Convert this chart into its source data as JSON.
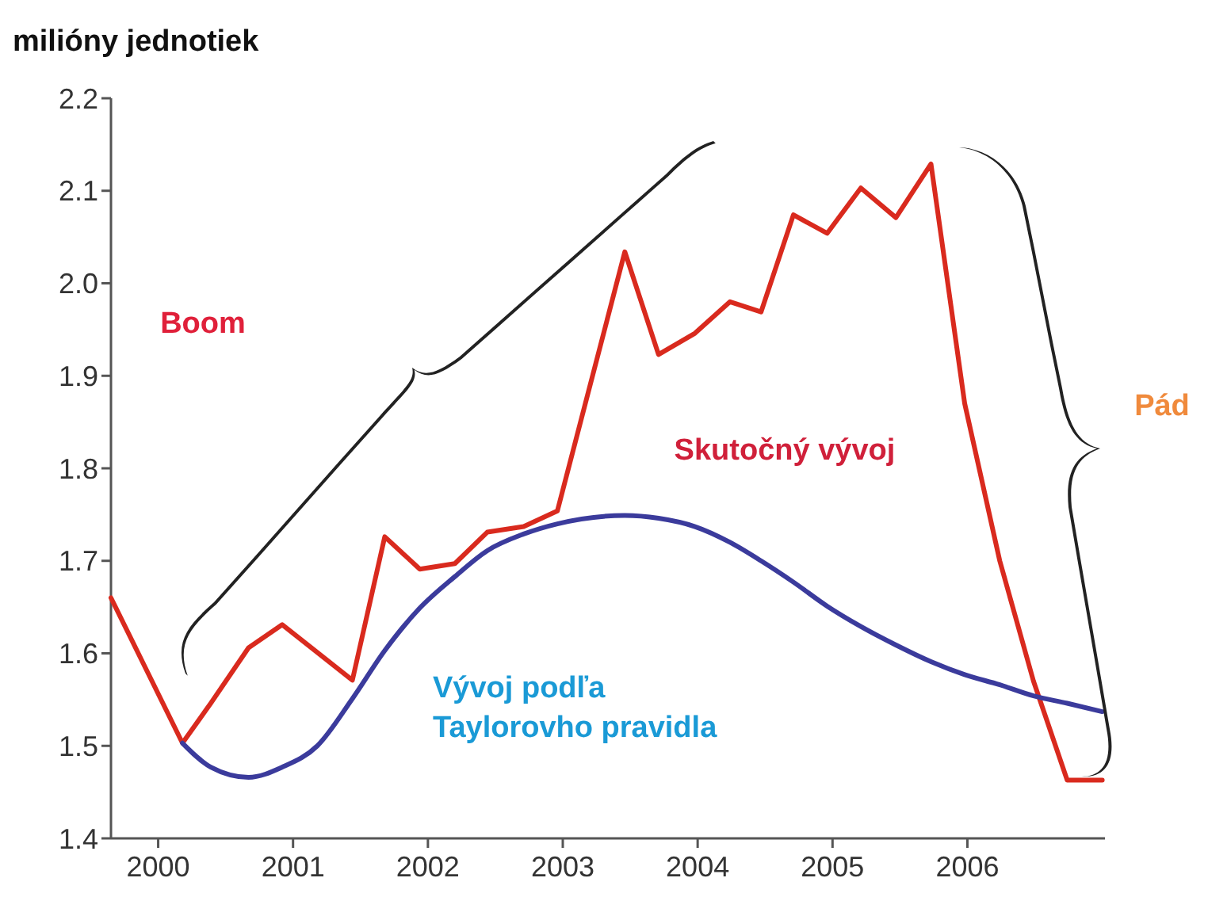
{
  "chart_data": {
    "type": "line",
    "ylabel": "milióny jednotiek",
    "xlim": [
      1999.65,
      2007.02
    ],
    "xticks": [
      2000,
      2001,
      2002,
      2003,
      2004,
      2005,
      2006
    ],
    "ylim": [
      1.4,
      2.2
    ],
    "yticks": [
      1.4,
      1.5,
      1.6,
      1.7,
      1.8,
      1.9,
      {
        "value": 2.0,
        "label": "2.0"
      },
      2.1,
      2.2
    ],
    "series": [
      {
        "name": "Skutočný vývoj",
        "color": "#d92a1e",
        "x": [
          1999.65,
          2000.18,
          2000.39,
          2000.67,
          2000.92,
          2001.44,
          2001.68,
          2001.94,
          2002.2,
          2002.44,
          2002.71,
          2002.96,
          2003.46,
          2003.71,
          2003.98,
          2004.24,
          2004.47,
          2004.71,
          2004.96,
          2005.21,
          2005.47,
          2005.73,
          2005.98,
          2006.24,
          2006.49,
          2006.74,
          2007.0
        ],
        "values": [
          1.66,
          1.503,
          1.546,
          1.606,
          1.631,
          1.571,
          1.726,
          1.691,
          1.697,
          1.731,
          1.737,
          1.754,
          2.034,
          1.923,
          1.946,
          1.98,
          1.969,
          2.074,
          2.054,
          2.103,
          2.071,
          2.129,
          1.87,
          1.7,
          1.57,
          1.463,
          1.463
        ]
      },
      {
        "name": "Vývoj podľa Taylorovho pravidla",
        "color": "#3b3b9c",
        "x": [
          2000.18,
          2000.39,
          2000.67,
          2000.92,
          2001.18,
          2001.44,
          2001.68,
          2001.94,
          2002.2,
          2002.44,
          2002.71,
          2002.96,
          2003.46,
          2003.71,
          2003.98,
          2004.24,
          2004.47,
          2004.71,
          2004.96,
          2005.21,
          2005.47,
          2005.73,
          2005.98,
          2006.24,
          2006.49,
          2006.74,
          2007.0
        ],
        "values": [
          1.503,
          1.477,
          1.466,
          1.477,
          1.5,
          1.551,
          1.603,
          1.649,
          1.683,
          1.711,
          1.729,
          1.74,
          1.749,
          1.746,
          1.737,
          1.72,
          1.7,
          1.677,
          1.651,
          1.629,
          1.609,
          1.591,
          1.577,
          1.566,
          1.554,
          1.546,
          1.537
        ]
      }
    ],
    "annotations": [
      "Boom",
      "Pád"
    ],
    "grid": false,
    "marker": "none",
    "line_style": "solid"
  }
}
